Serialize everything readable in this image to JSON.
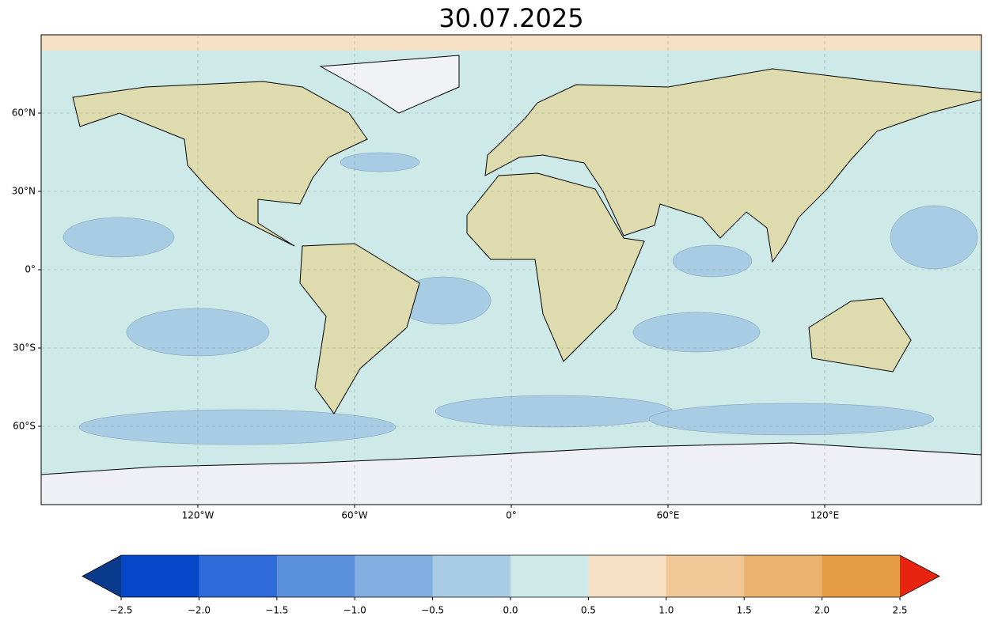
{
  "title": "30.07.2025",
  "map": {
    "lat_ticks": [
      {
        "value": 60,
        "label": "60°N"
      },
      {
        "value": 30,
        "label": "30°N"
      },
      {
        "value": 0,
        "label": "0°"
      },
      {
        "value": -30,
        "label": "30°S"
      },
      {
        "value": -60,
        "label": "60°S"
      }
    ],
    "lon_ticks": [
      {
        "value": -120,
        "label": "120°W"
      },
      {
        "value": -60,
        "label": "60°W"
      },
      {
        "value": 0,
        "label": "0°"
      },
      {
        "value": 60,
        "label": "60°E"
      },
      {
        "value": 120,
        "label": "120°E"
      }
    ],
    "grid": true
  },
  "colorbar": {
    "ticks": [
      {
        "value": -2.5,
        "label": "−2.5"
      },
      {
        "value": -2.0,
        "label": "−2.0"
      },
      {
        "value": -1.5,
        "label": "−1.5"
      },
      {
        "value": -1.0,
        "label": "−1.0"
      },
      {
        "value": -0.5,
        "label": "−0.5"
      },
      {
        "value": 0.0,
        "label": "0.0"
      },
      {
        "value": 0.5,
        "label": "0.5"
      },
      {
        "value": 1.0,
        "label": "1.0"
      },
      {
        "value": 1.5,
        "label": "1.5"
      },
      {
        "value": 2.0,
        "label": "2.0"
      },
      {
        "value": 2.5,
        "label": "2.5"
      }
    ],
    "colors": [
      "#0547c8",
      "#2e6bd8",
      "#5a8fdc",
      "#80aee0",
      "#a8cce4",
      "#cde9e8",
      "#f5e0c6",
      "#f2c797",
      "#ebb36e",
      "#e69b45"
    ],
    "under_color": "#0a3a8c",
    "over_color": "#e8230f"
  }
}
